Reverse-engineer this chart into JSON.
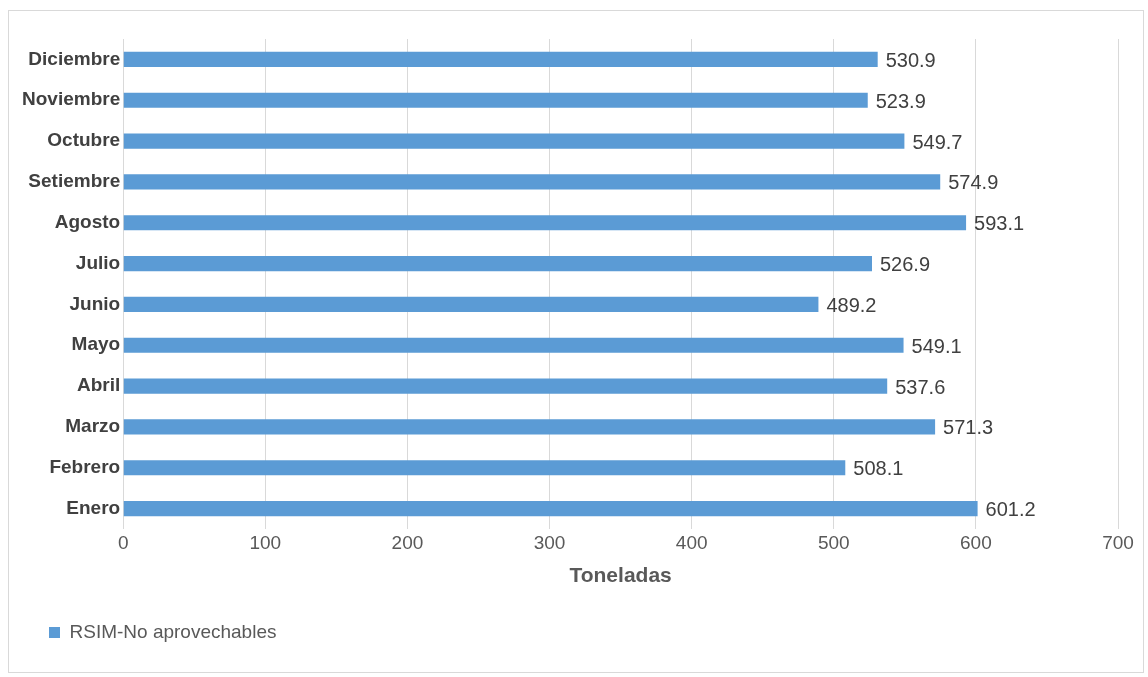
{
  "chart_data": {
    "type": "bar",
    "orientation": "horizontal",
    "xlabel": "Toneladas",
    "categories": [
      "Diciembre",
      "Noviembre",
      "Octubre",
      "Setiembre",
      "Agosto",
      "Julio",
      "Junio",
      "Mayo",
      "Abril",
      "Marzo",
      "Febrero",
      "Enero"
    ],
    "series": [
      {
        "name": "RSIM-No aprovechables",
        "color": "#5b9bd5",
        "values": [
          530.9,
          523.9,
          549.7,
          574.9,
          593.1,
          526.9,
          489.2,
          549.1,
          537.6,
          571.3,
          508.1,
          601.2
        ]
      }
    ],
    "xlim": [
      0,
      700
    ],
    "xticks": [
      0,
      100,
      200,
      300,
      400,
      500,
      600,
      700
    ],
    "grid": "x",
    "legend": "bottom",
    "data_labels": true
  }
}
